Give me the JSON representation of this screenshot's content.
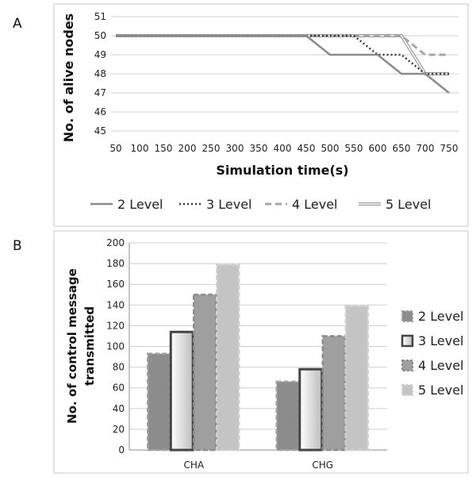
{
  "panels": {
    "a": "A",
    "b": "B"
  },
  "chart_data": [
    {
      "type": "line",
      "panel": "A",
      "xlabel": "Simulation time(s)",
      "ylabel": "No. of alive nodes",
      "x": [
        50,
        100,
        150,
        200,
        250,
        300,
        350,
        400,
        450,
        500,
        550,
        600,
        650,
        700,
        750
      ],
      "ylim": [
        45,
        51
      ],
      "yticks": [
        45,
        46,
        47,
        48,
        49,
        50,
        51
      ],
      "grid": true,
      "legend": "bottom",
      "series": [
        {
          "name": "2 Level",
          "color": "#8c8c8c",
          "style": "solid",
          "values": [
            50,
            50,
            50,
            50,
            50,
            50,
            50,
            50,
            50,
            49,
            49,
            49,
            48,
            48,
            47
          ]
        },
        {
          "name": "3 Level",
          "color": "#3a3a3a",
          "style": "dotted",
          "values": [
            50,
            50,
            50,
            50,
            50,
            50,
            50,
            50,
            50,
            50,
            50,
            49,
            49,
            48,
            48
          ]
        },
        {
          "name": "4 Level",
          "color": "#a6a6a6",
          "style": "dashed",
          "values": [
            50,
            50,
            50,
            50,
            50,
            50,
            50,
            50,
            50,
            50,
            50,
            50,
            50,
            49,
            49
          ]
        },
        {
          "name": "5 Level",
          "color": "#c6c6c6",
          "style": "double",
          "values": [
            50,
            50,
            50,
            50,
            50,
            50,
            50,
            50,
            50,
            50,
            50,
            50,
            50,
            48,
            48
          ]
        }
      ]
    },
    {
      "type": "bar",
      "panel": "B",
      "categories": [
        "CHA",
        "CHG"
      ],
      "ylabel": "No. of control message transmitted",
      "ylabel_lines": [
        "No. of control message",
        "transmitted"
      ],
      "ylim": [
        0,
        200
      ],
      "yticks": [
        0,
        20,
        40,
        60,
        80,
        100,
        120,
        140,
        160,
        180,
        200
      ],
      "grid": true,
      "legend": "right",
      "series": [
        {
          "name": "2 Level",
          "color": "#8a8a8a",
          "values": [
            93,
            66
          ]
        },
        {
          "name": "3 Level",
          "color": "#d9d9d9",
          "values": [
            114,
            78
          ]
        },
        {
          "name": "4 Level",
          "color": "#a0a0a0",
          "values": [
            150,
            110
          ]
        },
        {
          "name": "5 Level",
          "color": "#c0c0c0",
          "values": [
            179,
            139
          ]
        }
      ]
    }
  ]
}
